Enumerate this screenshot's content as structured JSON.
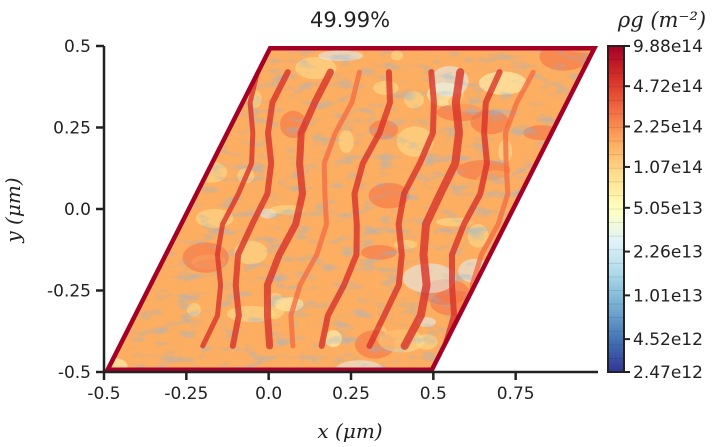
{
  "chart_data": {
    "type": "heatmap",
    "title": "49.99%",
    "xlabel": "x (μm)",
    "ylabel": "y (μm)",
    "xlim": [
      -0.5,
      1.0
    ],
    "ylim": [
      -0.5,
      0.5
    ],
    "x_ticks": [
      -0.5,
      -0.25,
      0.0,
      0.25,
      0.5,
      0.75
    ],
    "x_tick_labels": [
      "-0.5",
      "-0.25",
      "0.0",
      "0.25",
      "0.5",
      "0.75"
    ],
    "y_ticks": [
      0.5,
      0.25,
      0.0,
      -0.25,
      -0.5
    ],
    "y_tick_labels": [
      "0.5",
      "0.25",
      "0.0",
      "-0.25",
      "-0.5"
    ],
    "domain": {
      "shape": "parallelogram",
      "corners": [
        [
          -0.5,
          -0.5
        ],
        [
          0.5,
          -0.5
        ],
        [
          1.0,
          0.5
        ],
        [
          0.0,
          0.5
        ]
      ]
    },
    "colorbar": {
      "label": "ρg (m⁻²)",
      "scale": "log",
      "range": [
        2470000000000.0,
        988000000000000.0
      ],
      "tick_values": [
        988000000000000.0,
        472000000000000.0,
        225000000000000.0,
        107000000000000.0,
        50500000000000.0,
        22600000000000.0,
        10100000000000.0,
        4520000000000.0,
        2470000000000.0
      ],
      "tick_labels": [
        "9.88e14",
        "4.72e14",
        "2.25e14",
        "1.07e14",
        "5.05e13",
        "2.26e13",
        "1.01e13",
        "4.52e12",
        "2.47e12"
      ],
      "colormap": "RdYlBu_r",
      "colors_top_to_bottom": [
        "#a50026",
        "#d73027",
        "#f46d43",
        "#fdae61",
        "#fee090",
        "#ffffbf",
        "#e0f3f8",
        "#abd9e9",
        "#74add1",
        "#4575b4",
        "#313695"
      ]
    },
    "grid": false
  }
}
